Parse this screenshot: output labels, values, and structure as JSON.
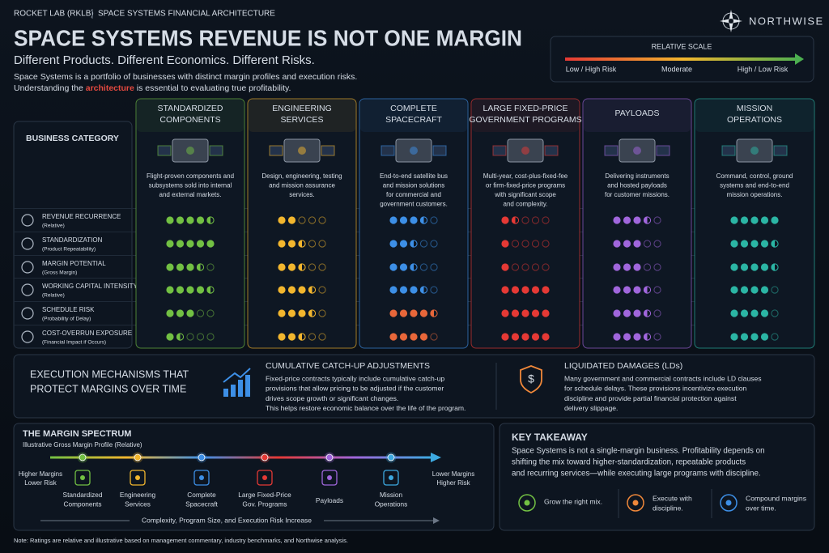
{
  "header": {
    "company": "ROCKET LAB (RKLB)",
    "section": "SPACE SYSTEMS FINANCIAL ARCHITECTURE",
    "brand": "NORTHWISE",
    "title": "SPACE SYSTEMS REVENUE IS NOT ONE MARGIN",
    "subtitle": "Different Products. Different Economics. Different Risks.",
    "intro": [
      [
        "Space Systems is a portfolio of businesses with distinct margin profiles and execution risks."
      ],
      [
        "Understanding the ",
        "architecture",
        " is essential to evaluating true profitability."
      ]
    ]
  },
  "relative_scale": {
    "title": "RELATIVE SCALE",
    "labels": [
      "Low / High Risk",
      "Moderate",
      "High / Low Risk"
    ],
    "colors": [
      "#e53935",
      "#f2b62e",
      "#4caf50"
    ]
  },
  "matrix": {
    "category_header": "BUSINESS CATEGORY",
    "rating_scale": [
      0,
      5
    ],
    "metrics": [
      {
        "name": "REVENUE RECURRENCE",
        "note": "(Relative)"
      },
      {
        "name": "STANDARDIZATION",
        "note": "(Product Repeatability)"
      },
      {
        "name": "MARGIN POTENTIAL",
        "note": "(Gross Margin)"
      },
      {
        "name": "WORKING CAPITAL INTENSITY",
        "note": "(Relative)"
      },
      {
        "name": "SCHEDULE RISK",
        "note": "(Probability of Delay)"
      },
      {
        "name": "COST-OVERRUN EXPOSURE",
        "note": "(Financial Impact if Occurs)"
      }
    ],
    "columns": [
      {
        "title": [
          "STANDARDIZED",
          "COMPONENTS"
        ],
        "color": "#72c043",
        "description": [
          "Flight-proven components and",
          "subsystems sold into internal",
          "and external markets."
        ],
        "ratings": [
          4.5,
          5,
          3.5,
          4.5,
          3,
          1.5
        ],
        "dot_colors": [
          "#72c043",
          "#72c043",
          "#72c043",
          "#72c043",
          "#72c043",
          "#72c043"
        ]
      },
      {
        "title": [
          "ENGINEERING",
          "SERVICES"
        ],
        "color": "#f2b62e",
        "description": [
          "Design, engineering, testing",
          "and mission assurance",
          "services."
        ],
        "ratings": [
          2,
          2.5,
          2.5,
          3.5,
          3.5,
          2.5
        ],
        "dot_colors": [
          "#f2b62e",
          "#f2b62e",
          "#f2b62e",
          "#f2b62e",
          "#f2b62e",
          "#f2b62e"
        ]
      },
      {
        "title": [
          "COMPLETE",
          "SPACECRAFT"
        ],
        "color": "#3d8fe6",
        "description": [
          "End-to-end satellite bus",
          "and mission solutions",
          "for commercial and",
          "government customers."
        ],
        "ratings": [
          3.5,
          2.5,
          2.5,
          3.5,
          4.5,
          4
        ],
        "dot_colors": [
          "#3d8fe6",
          "#3d8fe6",
          "#3d8fe6",
          "#3d8fe6",
          "#e8673a",
          "#e8673a"
        ]
      },
      {
        "title": [
          "LARGE FIXED-PRICE",
          "GOVERNMENT PROGRAMS"
        ],
        "color": "#e53935",
        "description": [
          "Multi-year, cost-plus-fixed-fee",
          "or firm-fixed-price programs",
          "with significant scope",
          "and complexity."
        ],
        "ratings": [
          1.5,
          1,
          1,
          5,
          5,
          5
        ],
        "dot_colors": [
          "#e53935",
          "#e53935",
          "#e53935",
          "#e53935",
          "#e53935",
          "#e53935"
        ]
      },
      {
        "title": [
          "PAYLOADS"
        ],
        "color": "#a066dc",
        "description": [
          "Delivering instruments",
          "and hosted payloads",
          "for customer missions."
        ],
        "ratings": [
          3.5,
          3,
          3,
          3.5,
          3.5,
          3.5
        ],
        "dot_colors": [
          "#a066dc",
          "#a066dc",
          "#a066dc",
          "#a066dc",
          "#a066dc",
          "#a066dc"
        ]
      },
      {
        "title": [
          "MISSION",
          "OPERATIONS"
        ],
        "color": "#2bb5a4",
        "description": [
          "Command, control, ground",
          "systems and end-to-end",
          "mission operations."
        ],
        "ratings": [
          5,
          4.5,
          4.5,
          4,
          4,
          4
        ],
        "dot_colors": [
          "#2bb5a4",
          "#2bb5a4",
          "#2bb5a4",
          "#2bb5a4",
          "#2bb5a4",
          "#2bb5a4"
        ]
      }
    ]
  },
  "execution": {
    "title": [
      "EXECUTION MECHANISMS THAT",
      "PROTECT MARGINS OVER TIME"
    ],
    "items": [
      {
        "title": "CUMULATIVE CATCH-UP ADJUSTMENTS",
        "color": "#3d8fe6",
        "lines": [
          "Fixed-price contracts typically include cumulative catch-up",
          "provisions that allow pricing to be adjusted if the customer",
          "drives scope growth or significant changes.",
          "This helps restore economic balance over the life of the program."
        ]
      },
      {
        "title": "LIQUIDATED DAMAGES (LDs)",
        "color": "#f0883a",
        "lines": [
          "Many government and commercial contracts include LD clauses",
          "for schedule delays. These provisions incentivize execution",
          "discipline and provide partial financial protection against",
          "delivery slippage."
        ]
      }
    ]
  },
  "spectrum": {
    "title": "THE MARGIN SPECTRUM",
    "subtitle": "Illustrative Gross Margin Profile (Relative)",
    "left": [
      "Higher Margins",
      "Lower Risk"
    ],
    "right": [
      "Lower Margins",
      "Higher Risk"
    ],
    "points": [
      {
        "label": [
          "Standardized",
          "Components"
        ],
        "color": "#72c043"
      },
      {
        "label": [
          "Engineering",
          "Services"
        ],
        "color": "#f2b62e"
      },
      {
        "label": [
          "Complete",
          "Spacecraft"
        ],
        "color": "#3d8fe6"
      },
      {
        "label": [
          "Large Fixed-Price",
          "Gov. Programs"
        ],
        "color": "#e53935"
      },
      {
        "label": [
          "Payloads"
        ],
        "color": "#a066dc"
      },
      {
        "label": [
          "Mission",
          "Operations"
        ],
        "color": "#3da9e0"
      }
    ],
    "axis_label": "Complexity, Program Size, and Execution Risk Increase"
  },
  "takeaway": {
    "title": "KEY TAKEAWAY",
    "lines": [
      "Space Systems is not a single-margin business. Profitability depends on",
      "shifting the mix toward higher-standardization, repeatable products",
      "and recurring services—while executing large programs with discipline."
    ],
    "actions": [
      {
        "label": [
          "Grow the right mix."
        ],
        "color": "#72c043"
      },
      {
        "label": [
          "Execute with",
          "discipline."
        ],
        "color": "#f0883a"
      },
      {
        "label": [
          "Compound margins",
          "over time."
        ],
        "color": "#3d8fe6"
      }
    ]
  },
  "note": "Note: Ratings are relative and illustrative based on management commentary, industry benchmarks, and Northwise analysis."
}
